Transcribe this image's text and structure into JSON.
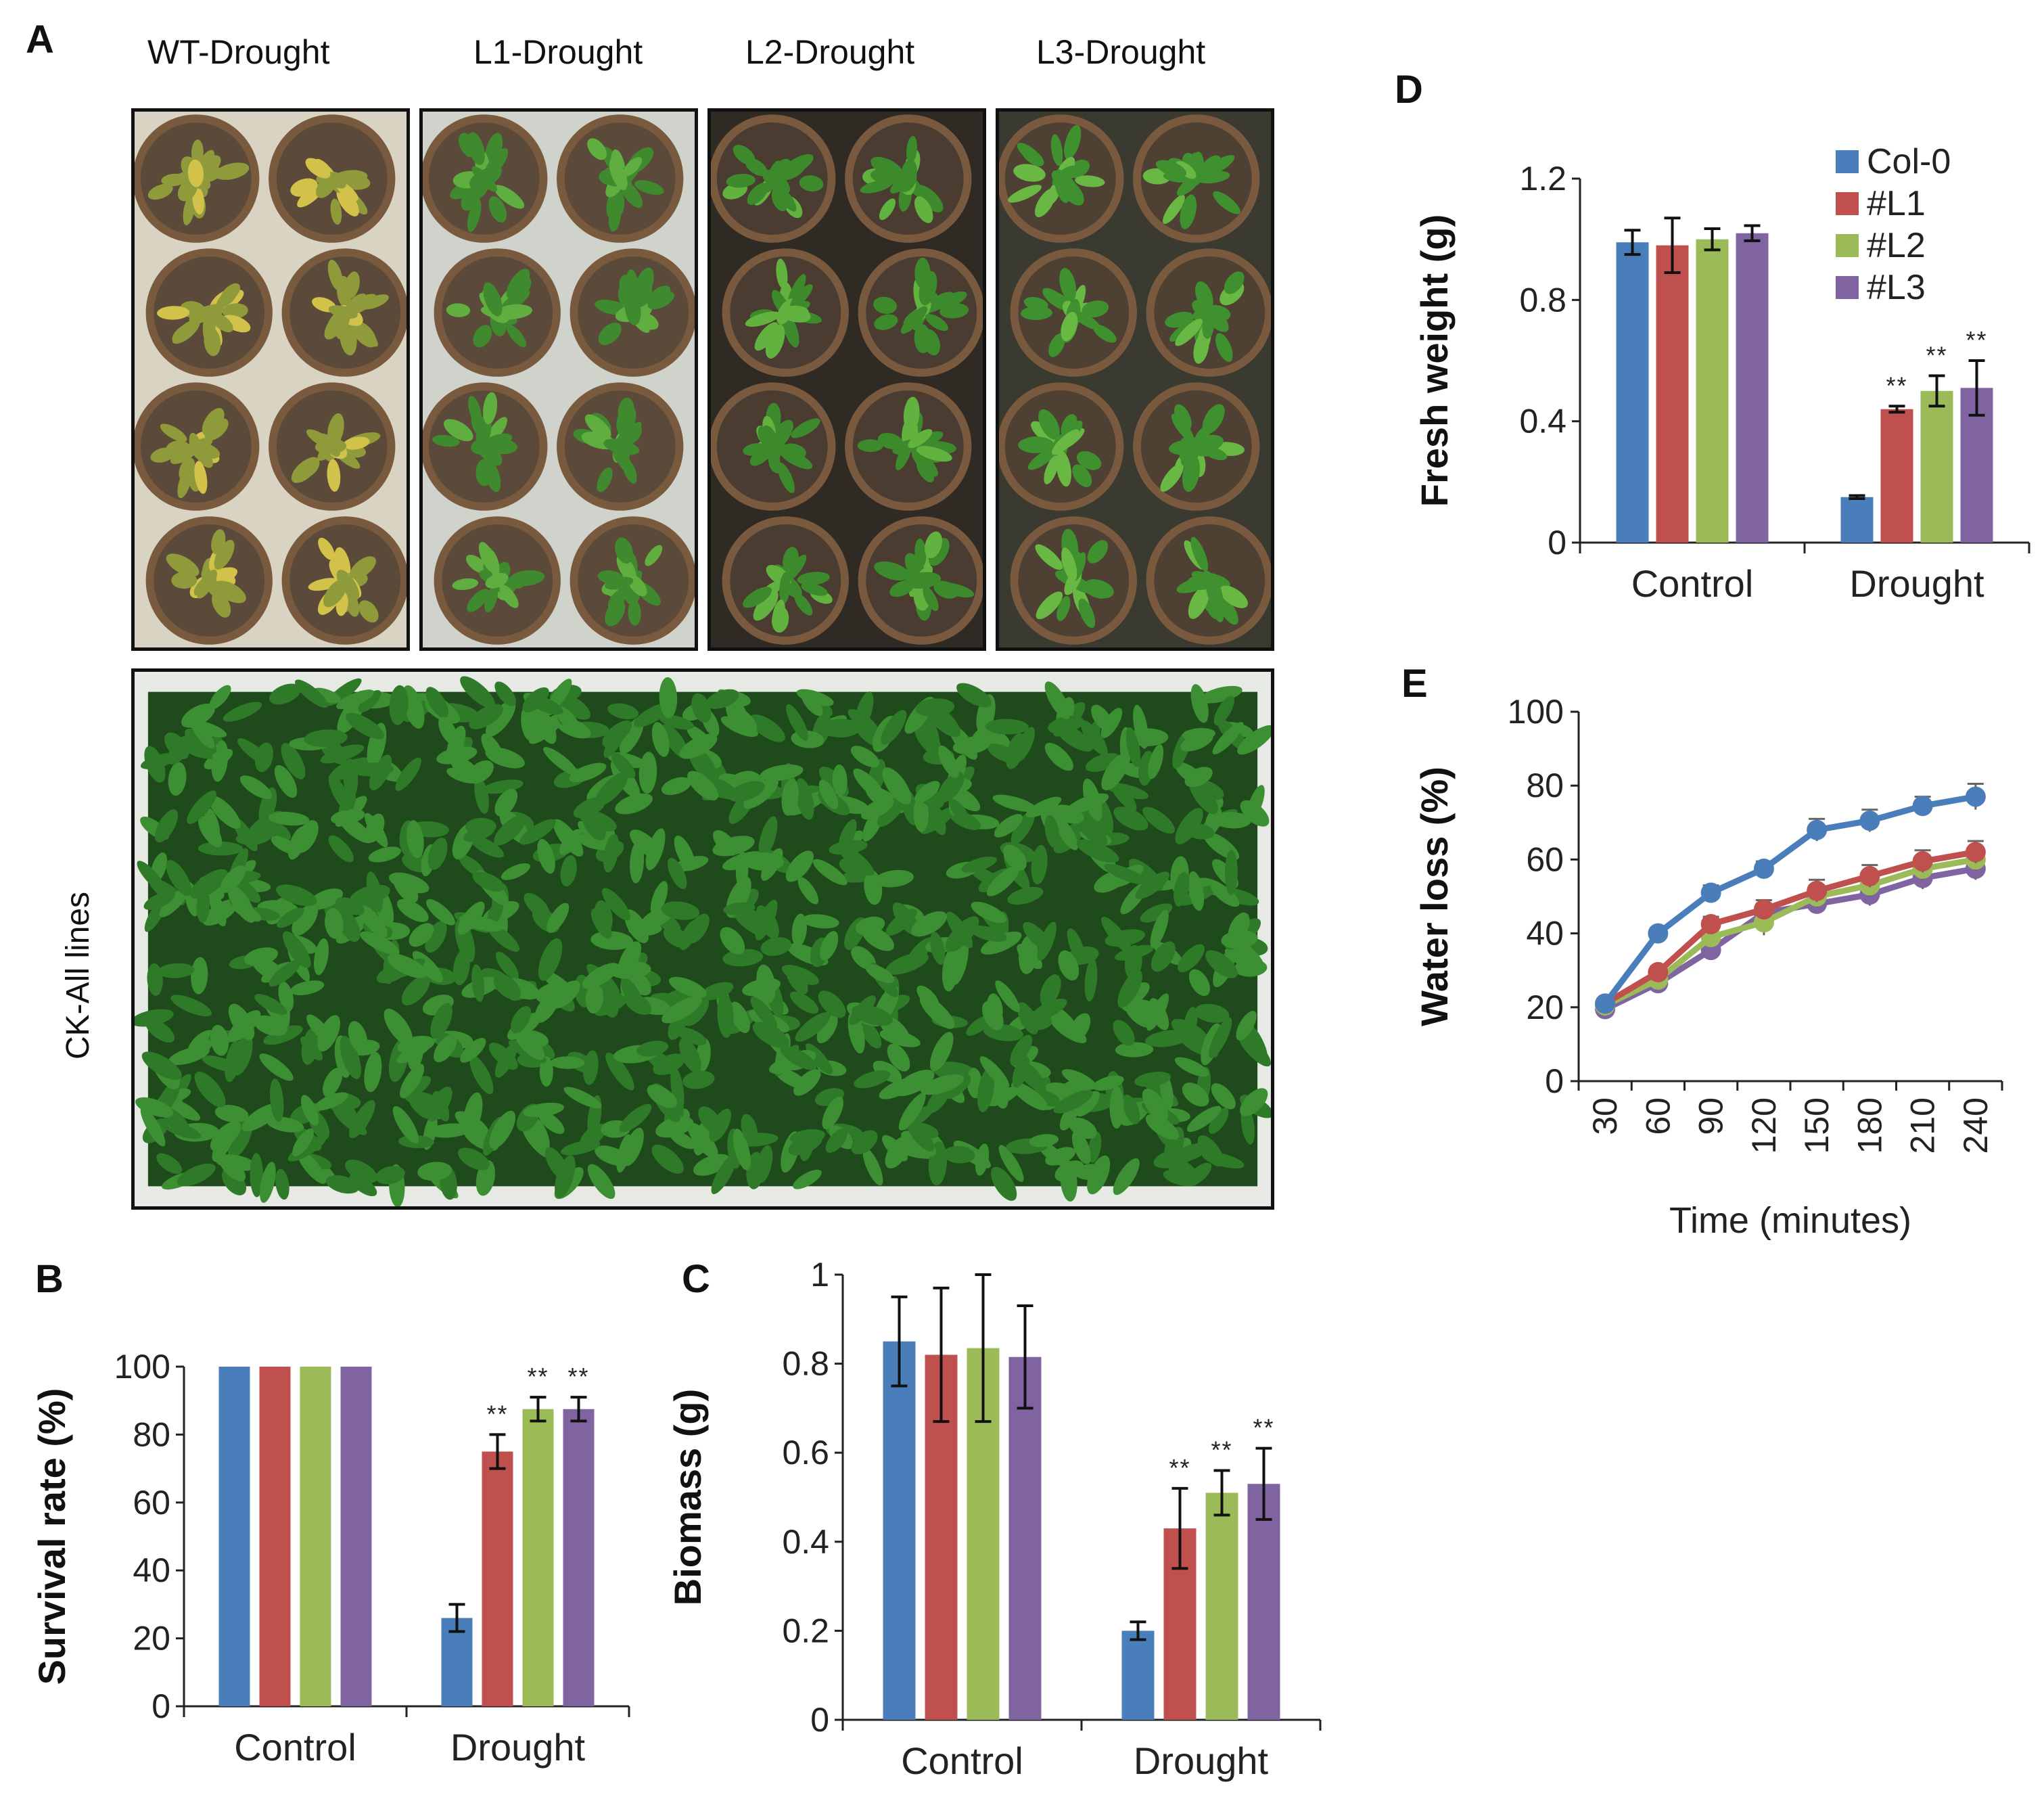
{
  "panels": {
    "A": "A",
    "B": "B",
    "C": "C",
    "D": "D",
    "E": "E"
  },
  "photos": {
    "top_labels": [
      "WT-Drought",
      "L1-Drought",
      "L2-Drought",
      "L3-Drought"
    ],
    "bottom_label": "CK-All lines"
  },
  "colors": {
    "Col-0": "#4a7ebb",
    "#L1": "#c0504d",
    "#L2": "#9bbb59",
    "#L3": "#8064a2",
    "axis": "#222222",
    "soil": "#5b4a3a",
    "leaf": "#3f8a2f"
  },
  "chart_data": [
    {
      "id": "B",
      "type": "bar",
      "ylabel": "Survival rate (%)",
      "ylim": [
        0,
        100
      ],
      "yticks": [
        0,
        20,
        40,
        60,
        80,
        100
      ],
      "categories": [
        "Control",
        "Drought"
      ],
      "series": [
        {
          "name": "Col-0",
          "values": [
            100,
            26
          ],
          "errors": [
            0,
            4
          ],
          "sig": [
            "",
            ""
          ]
        },
        {
          "name": "#L1",
          "values": [
            100,
            75
          ],
          "errors": [
            0,
            5
          ],
          "sig": [
            "",
            "**"
          ]
        },
        {
          "name": "#L2",
          "values": [
            100,
            87.5
          ],
          "errors": [
            0,
            3.5
          ],
          "sig": [
            "",
            "**"
          ]
        },
        {
          "name": "#L3",
          "values": [
            100,
            87.5
          ],
          "errors": [
            0,
            3.5
          ],
          "sig": [
            "",
            "**"
          ]
        }
      ]
    },
    {
      "id": "C",
      "type": "bar",
      "ylabel": "Biomass (g)",
      "ylim": [
        0,
        1
      ],
      "yticks": [
        0,
        0.2,
        0.4,
        0.6,
        0.8,
        1
      ],
      "categories": [
        "Control",
        "Drought"
      ],
      "series": [
        {
          "name": "Col-0",
          "values": [
            0.85,
            0.2
          ],
          "errors": [
            0.1,
            0.02
          ],
          "sig": [
            "",
            ""
          ]
        },
        {
          "name": "#L1",
          "values": [
            0.82,
            0.43
          ],
          "errors": [
            0.15,
            0.09
          ],
          "sig": [
            "",
            "**"
          ]
        },
        {
          "name": "#L2",
          "values": [
            0.835,
            0.51
          ],
          "errors": [
            0.165,
            0.05
          ],
          "sig": [
            "",
            "**"
          ]
        },
        {
          "name": "#L3",
          "values": [
            0.815,
            0.53
          ],
          "errors": [
            0.115,
            0.08
          ],
          "sig": [
            "",
            "**"
          ]
        }
      ]
    },
    {
      "id": "D",
      "type": "bar",
      "ylabel": "Fresh weight  (g)",
      "ylim": [
        0,
        1.2
      ],
      "yticks": [
        0,
        0.4,
        0.8,
        1.2
      ],
      "categories": [
        "Control",
        "Drought"
      ],
      "legend": [
        "Col-0",
        "#L1",
        "#L2",
        "#L3"
      ],
      "series": [
        {
          "name": "Col-0",
          "values": [
            0.99,
            0.15
          ],
          "errors": [
            0.04,
            0.005
          ],
          "sig": [
            "",
            ""
          ]
        },
        {
          "name": "#L1",
          "values": [
            0.98,
            0.44
          ],
          "errors": [
            0.09,
            0.01
          ],
          "sig": [
            "",
            "**"
          ]
        },
        {
          "name": "#L2",
          "values": [
            1.0,
            0.5
          ],
          "errors": [
            0.035,
            0.05
          ],
          "sig": [
            "",
            "**"
          ]
        },
        {
          "name": "#L3",
          "values": [
            1.02,
            0.51
          ],
          "errors": [
            0.025,
            0.09
          ],
          "sig": [
            "",
            "**"
          ]
        }
      ]
    },
    {
      "id": "E",
      "type": "line",
      "ylabel": "Water loss (%)",
      "xlabel": "Time (minutes)",
      "ylim": [
        0,
        100
      ],
      "yticks": [
        0,
        20,
        40,
        60,
        80,
        100
      ],
      "x": [
        "30",
        "60",
        "90",
        "120",
        "150",
        "180",
        "210",
        "240"
      ],
      "series": [
        {
          "name": "Col-0",
          "values": [
            21,
            40,
            51,
            57.5,
            68,
            70.5,
            74.5,
            77
          ],
          "errors": [
            1,
            1.5,
            2,
            2,
            3,
            3,
            2.5,
            3.5
          ]
        },
        {
          "name": "#L1",
          "values": [
            21,
            29.5,
            42.5,
            46.5,
            51.5,
            55.5,
            59.5,
            62
          ],
          "errors": [
            1,
            1.5,
            2,
            2.5,
            3,
            3,
            3,
            3
          ]
        },
        {
          "name": "#L2",
          "values": [
            20.5,
            27.5,
            39,
            43,
            50,
            53,
            57.5,
            60
          ],
          "errors": [
            1,
            1.5,
            2,
            3.5,
            3,
            3,
            3,
            3
          ]
        },
        {
          "name": "#L3",
          "values": [
            19.5,
            26.5,
            35.5,
            45.5,
            48,
            50.5,
            55,
            57.5
          ],
          "errors": [
            1,
            1.5,
            2,
            2.5,
            2.5,
            3,
            3,
            3
          ]
        }
      ]
    }
  ]
}
